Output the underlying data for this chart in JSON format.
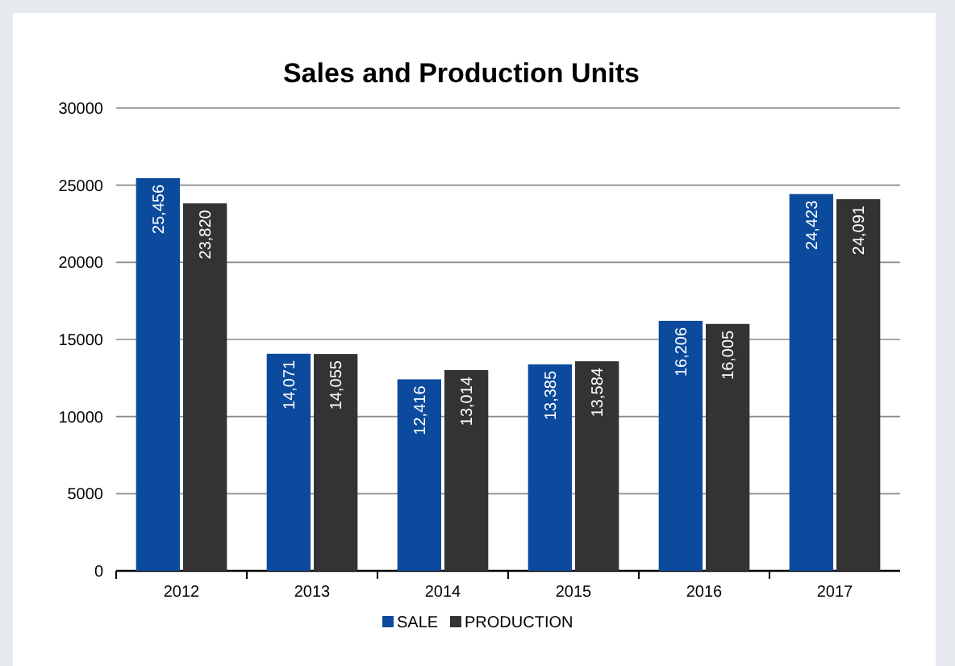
{
  "chart_data": {
    "type": "bar",
    "title": "Sales and Production Units",
    "categories": [
      "2012",
      "2013",
      "2014",
      "2015",
      "2016",
      "2017"
    ],
    "series": [
      {
        "name": "SALE",
        "color": "#0b4a9c",
        "values": [
          25456,
          14071,
          12416,
          13385,
          16206,
          24423
        ],
        "value_labels": [
          "25,456",
          "14,071",
          "12,416",
          "13,385",
          "16,206",
          "24,423"
        ]
      },
      {
        "name": "PRODUCTION",
        "color": "#333333",
        "values": [
          23820,
          14055,
          13014,
          13584,
          16005,
          24091
        ],
        "value_labels": [
          "23,820",
          "14,055",
          "13,014",
          "13,584",
          "16,005",
          "24,091"
        ]
      }
    ],
    "ylim": [
      0,
      30000
    ],
    "yticks": [
      0,
      5000,
      10000,
      15000,
      20000,
      25000,
      30000
    ],
    "grid": "y",
    "legend": "bottom"
  }
}
